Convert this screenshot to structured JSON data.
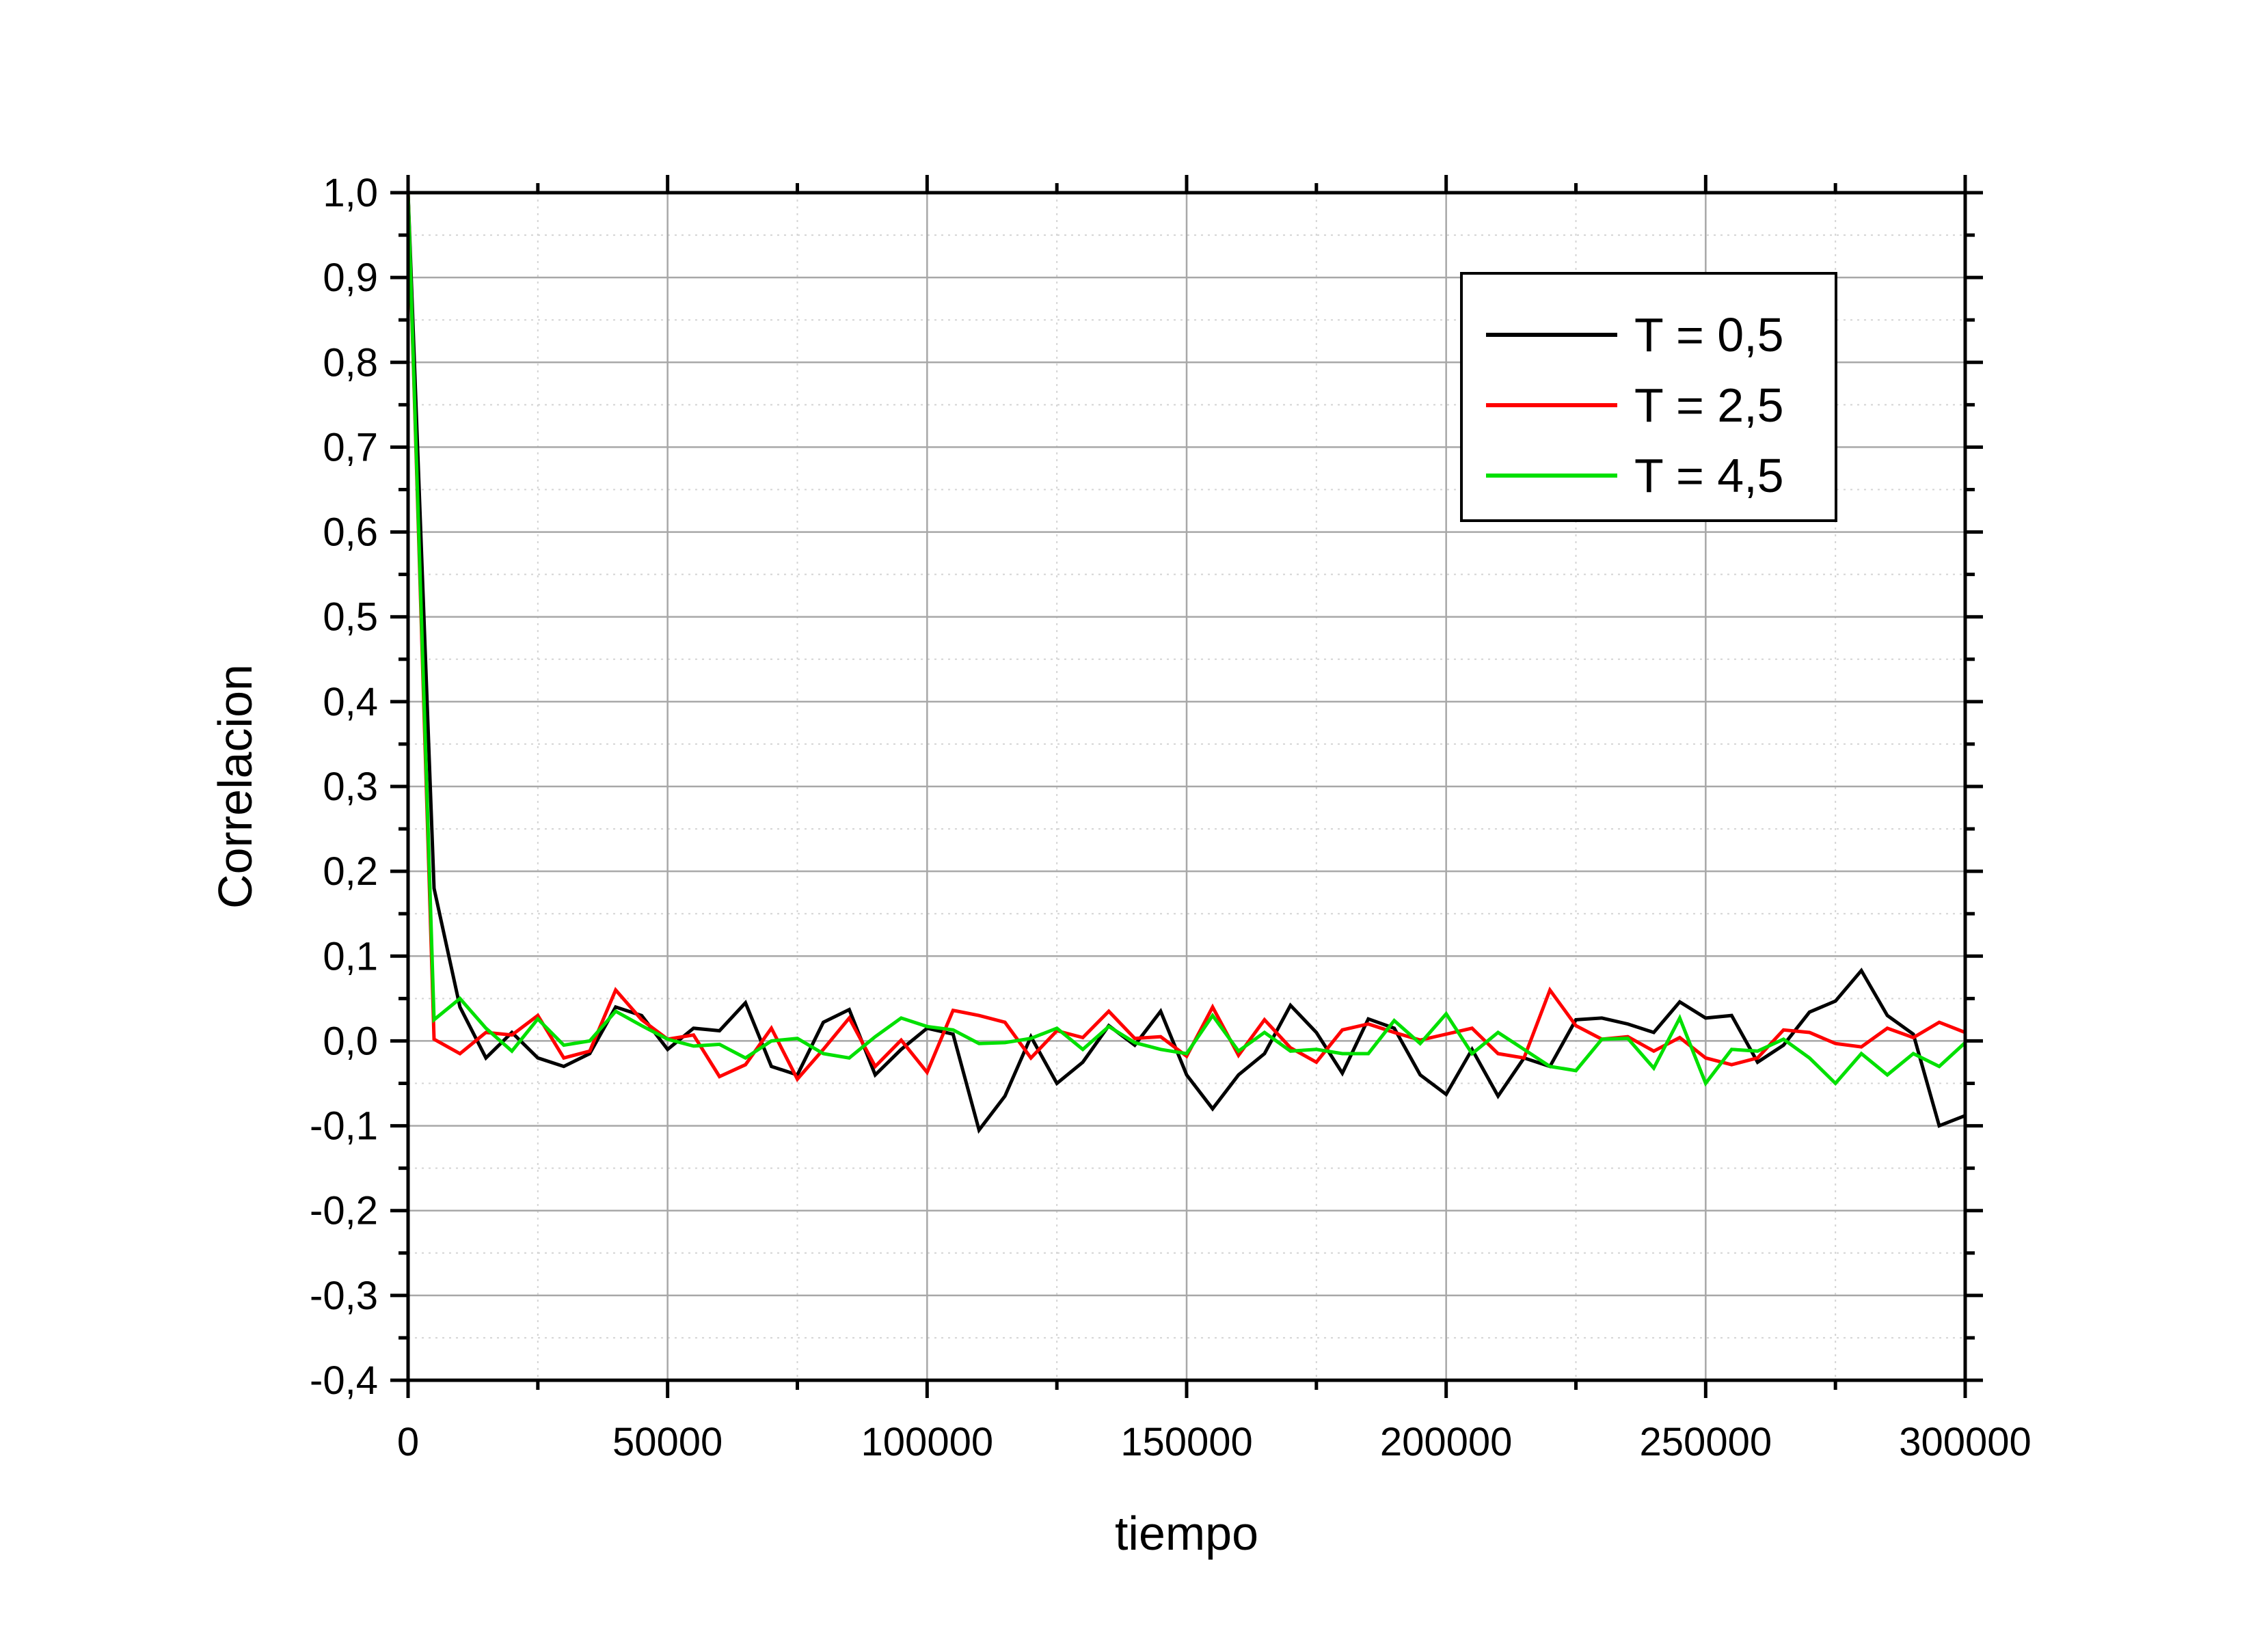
{
  "chart_data": {
    "type": "line",
    "title": "",
    "xlabel": "tiempo",
    "ylabel": "Correlacion",
    "xlim": [
      0,
      300000
    ],
    "ylim": [
      -0.4,
      1.0
    ],
    "x_ticks": [
      0,
      50000,
      100000,
      150000,
      200000,
      250000,
      300000
    ],
    "x_tick_labels": [
      "0",
      "50000",
      "100000",
      "150000",
      "200000",
      "250000",
      "300000"
    ],
    "y_ticks": [
      1.0,
      0.9,
      0.8,
      0.7,
      0.6,
      0.5,
      0.4,
      0.3,
      0.2,
      0.1,
      0.0,
      -0.1,
      -0.2,
      -0.3,
      -0.4
    ],
    "y_tick_labels": [
      "1,0",
      "0,9",
      "0,8",
      "0,7",
      "0,6",
      "0,5",
      "0,4",
      "0,3",
      "0,2",
      "0,1",
      "0,0",
      "-0,1",
      "-0,2",
      "-0,3",
      "-0,4"
    ],
    "grid": true,
    "legend_position": "top-right",
    "x": [
      0,
      5000,
      10000,
      15000,
      20000,
      25000,
      30000,
      35000,
      40000,
      45000,
      50000,
      55000,
      60000,
      65000,
      70000,
      75000,
      80000,
      85000,
      90000,
      95000,
      100000,
      105000,
      110000,
      115000,
      120000,
      125000,
      130000,
      135000,
      140000,
      145000,
      150000,
      155000,
      160000,
      165000,
      170000,
      175000,
      180000,
      185000,
      190000,
      195000,
      200000,
      205000,
      210000,
      215000,
      220000,
      225000,
      230000,
      235000,
      240000,
      245000,
      250000,
      255000,
      260000,
      265000,
      270000,
      275000,
      280000,
      285000,
      290000,
      295000,
      300000
    ],
    "series": [
      {
        "name": "T = 0,5",
        "color": "#000000",
        "values": [
          1.0,
          0.18,
          0.04,
          -0.02,
          0.01,
          -0.02,
          -0.03,
          -0.015,
          0.04,
          0.03,
          -0.01,
          0.015,
          0.012,
          0.045,
          -0.03,
          -0.04,
          0.022,
          0.037,
          -0.04,
          -0.01,
          0.015,
          0.008,
          -0.105,
          -0.065,
          0.005,
          -0.05,
          -0.025,
          0.018,
          -0.005,
          0.035,
          -0.04,
          -0.08,
          -0.04,
          -0.015,
          0.042,
          0.01,
          -0.038,
          0.026,
          0.015,
          -0.04,
          -0.063,
          -0.01,
          -0.065,
          -0.02,
          -0.03,
          0.025,
          0.027,
          0.02,
          0.01,
          0.046,
          0.027,
          0.03,
          -0.025,
          -0.005,
          0.034,
          0.047,
          0.083,
          0.03,
          0.008,
          -0.1,
          -0.088
        ]
      },
      {
        "name": "T = 2,5",
        "color": "#ff0000",
        "values": [
          1.0,
          0.002,
          -0.015,
          0.01,
          0.007,
          0.03,
          -0.02,
          -0.012,
          0.06,
          0.025,
          0.002,
          0.007,
          -0.042,
          -0.028,
          0.015,
          -0.045,
          -0.01,
          0.027,
          -0.03,
          0.001,
          -0.037,
          0.036,
          0.03,
          0.022,
          -0.02,
          0.012,
          0.004,
          0.035,
          0.003,
          0.005,
          -0.018,
          0.04,
          -0.017,
          0.025,
          -0.008,
          -0.025,
          0.013,
          0.02,
          0.01,
          0.001,
          0.008,
          0.015,
          -0.015,
          -0.02,
          0.06,
          0.018,
          0.002,
          0.005,
          -0.012,
          0.004,
          -0.02,
          -0.028,
          -0.02,
          0.013,
          0.01,
          -0.003,
          -0.007,
          0.015,
          0.004,
          0.022,
          0.01
        ]
      },
      {
        "name": "T = 4,5",
        "color": "#00e000",
        "values": [
          1.0,
          0.025,
          0.05,
          0.015,
          -0.012,
          0.026,
          -0.005,
          0.0,
          0.035,
          0.018,
          0.002,
          -0.006,
          -0.004,
          -0.02,
          0.0,
          0.003,
          -0.015,
          -0.02,
          0.005,
          0.027,
          0.017,
          0.013,
          -0.003,
          -0.002,
          0.003,
          0.015,
          -0.01,
          0.017,
          -0.002,
          -0.01,
          -0.015,
          0.03,
          -0.012,
          0.01,
          -0.012,
          -0.01,
          -0.015,
          -0.015,
          0.024,
          -0.003,
          0.032,
          -0.015,
          0.01,
          -0.01,
          -0.03,
          -0.035,
          0.002,
          0.003,
          -0.032,
          0.027,
          -0.05,
          -0.01,
          -0.012,
          0.002,
          -0.02,
          -0.05,
          -0.015,
          -0.04,
          -0.015,
          -0.03,
          -0.002
        ]
      }
    ]
  }
}
